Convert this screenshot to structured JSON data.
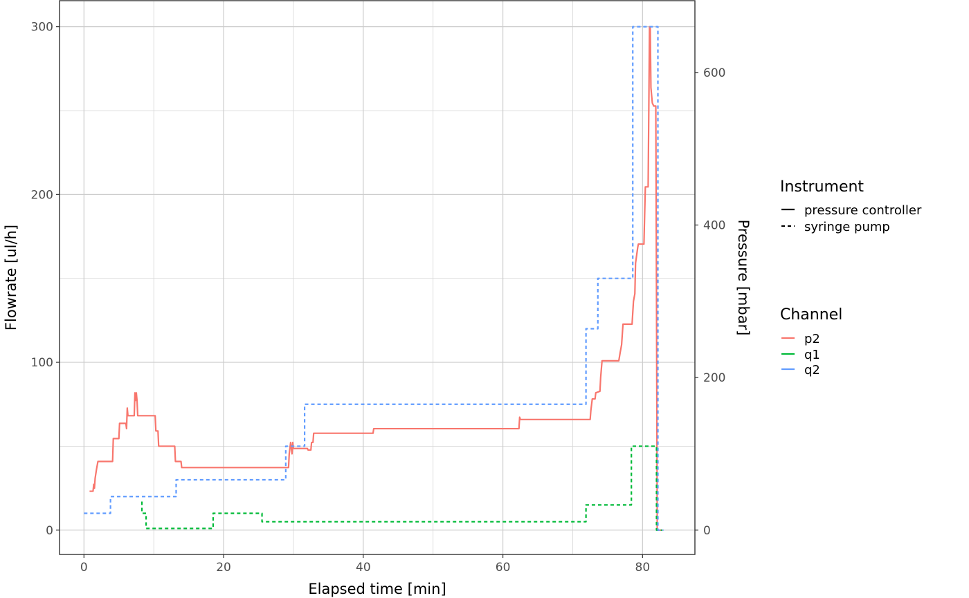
{
  "chart_data": {
    "type": "line",
    "xlabel": "Elapsed time [min]",
    "ylabel": "Flowrate [ul/h]",
    "y2label": "Pressure [mbar]",
    "xlim": [
      -3.5,
      87.5
    ],
    "ylim": [
      -14.5,
      315.5
    ],
    "y2lim": [
      -31.9,
      694.1
    ],
    "x_ticks": [
      0,
      20,
      40,
      60,
      80
    ],
    "y_ticks": [
      0,
      100,
      200,
      300
    ],
    "y2_ticks": [
      0,
      200,
      400,
      600
    ],
    "grid": true,
    "legend_position": "right",
    "legend": {
      "instrument_title": "Instrument",
      "instrument_items": [
        {
          "label": "pressure controller",
          "linetype": "solid"
        },
        {
          "label": "syringe pump",
          "linetype": "dashed"
        }
      ],
      "channel_title": "Channel",
      "channel_items": [
        {
          "label": "p2",
          "color": "#F8766D"
        },
        {
          "label": "q1",
          "color": "#00BA38"
        },
        {
          "label": "q2",
          "color": "#619CFF"
        }
      ]
    },
    "series": [
      {
        "name": "p2",
        "instrument": "pressure controller",
        "channel": "p2",
        "axis": "right",
        "color": "#F8766D",
        "linetype": "solid",
        "points": [
          [
            0.8,
            51
          ],
          [
            1.3,
            51
          ],
          [
            1.4,
            60
          ],
          [
            1.5,
            55
          ],
          [
            1.6,
            68
          ],
          [
            1.8,
            80
          ],
          [
            2.0,
            90
          ],
          [
            4.1,
            90
          ],
          [
            4.2,
            120
          ],
          [
            5.0,
            120
          ],
          [
            5.1,
            140
          ],
          [
            6.0,
            140
          ],
          [
            6.1,
            133
          ],
          [
            6.2,
            160
          ],
          [
            6.3,
            150
          ],
          [
            7.2,
            150
          ],
          [
            7.3,
            180
          ],
          [
            7.4,
            170
          ],
          [
            7.5,
            180
          ],
          [
            7.6,
            170
          ],
          [
            7.7,
            150
          ],
          [
            10.2,
            150
          ],
          [
            10.3,
            130
          ],
          [
            10.6,
            130
          ],
          [
            10.7,
            110
          ],
          [
            13.0,
            110
          ],
          [
            13.1,
            90
          ],
          [
            13.9,
            90
          ],
          [
            14.0,
            82
          ],
          [
            29.3,
            82
          ],
          [
            29.4,
            100
          ],
          [
            29.6,
            115
          ],
          [
            29.8,
            100
          ],
          [
            29.9,
            115
          ],
          [
            30.0,
            107
          ],
          [
            32.0,
            107
          ],
          [
            32.1,
            105
          ],
          [
            32.5,
            105
          ],
          [
            32.6,
            115
          ],
          [
            32.8,
            115
          ],
          [
            32.9,
            127
          ],
          [
            41.4,
            127
          ],
          [
            41.5,
            133
          ],
          [
            62.3,
            133
          ],
          [
            62.4,
            148
          ],
          [
            62.5,
            145
          ],
          [
            72.5,
            145
          ],
          [
            72.6,
            157
          ],
          [
            72.8,
            172
          ],
          [
            73.2,
            172
          ],
          [
            73.3,
            180
          ],
          [
            73.9,
            182
          ],
          [
            74.0,
            200
          ],
          [
            74.2,
            222
          ],
          [
            76.6,
            222
          ],
          [
            76.8,
            233
          ],
          [
            77.0,
            243
          ],
          [
            77.2,
            270
          ],
          [
            78.5,
            270
          ],
          [
            78.7,
            300
          ],
          [
            78.9,
            310
          ],
          [
            79.0,
            350
          ],
          [
            79.3,
            370
          ],
          [
            79.4,
            375
          ],
          [
            80.2,
            375
          ],
          [
            80.4,
            450
          ],
          [
            80.8,
            450
          ],
          [
            81.0,
            660
          ],
          [
            81.1,
            660
          ],
          [
            81.2,
            580
          ],
          [
            81.4,
            560
          ],
          [
            81.6,
            556
          ],
          [
            81.9,
            556
          ],
          [
            82.0,
            300
          ],
          [
            82.1,
            0
          ],
          [
            82.8,
            0
          ]
        ]
      },
      {
        "name": "q1",
        "instrument": "syringe pump",
        "channel": "q1",
        "axis": "left",
        "color": "#00BA38",
        "linetype": "dashed",
        "points": [
          [
            8.3,
            17
          ],
          [
            8.3,
            10
          ],
          [
            8.9,
            10
          ],
          [
            8.9,
            1
          ],
          [
            18.5,
            1
          ],
          [
            18.5,
            10
          ],
          [
            25.5,
            10
          ],
          [
            25.5,
            5
          ],
          [
            71.9,
            5
          ],
          [
            71.9,
            15
          ],
          [
            78.4,
            15
          ],
          [
            78.4,
            50
          ],
          [
            82.0,
            50
          ],
          [
            82.0,
            0
          ],
          [
            82.8,
            0
          ]
        ]
      },
      {
        "name": "q2",
        "instrument": "syringe pump",
        "channel": "q2",
        "axis": "left",
        "color": "#619CFF",
        "linetype": "dashed",
        "points": [
          [
            0,
            10
          ],
          [
            3.8,
            10
          ],
          [
            3.8,
            20
          ],
          [
            13.2,
            20
          ],
          [
            13.2,
            30
          ],
          [
            28.9,
            30
          ],
          [
            28.9,
            50
          ],
          [
            31.6,
            50
          ],
          [
            31.6,
            75
          ],
          [
            71.9,
            75
          ],
          [
            71.9,
            120
          ],
          [
            73.6,
            120
          ],
          [
            73.6,
            150
          ],
          [
            78.6,
            150
          ],
          [
            78.6,
            300
          ],
          [
            82.2,
            300
          ],
          [
            82.2,
            0
          ],
          [
            83.0,
            0
          ]
        ]
      }
    ]
  }
}
